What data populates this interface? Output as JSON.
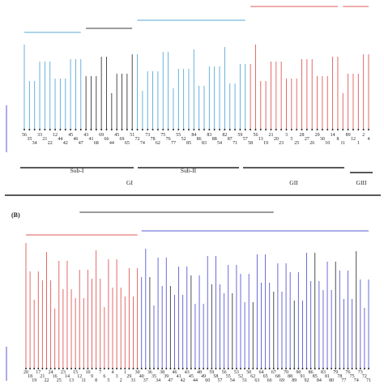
{
  "panel_a": {
    "colors": {
      "cluster_gi_sub1": "#5aa9d6",
      "cluster_gi_core": "#3a3a3a",
      "cluster_gi_sub2": "#5aa9d6",
      "cluster_gii": "#e05a5a",
      "cluster_giii": "#e05a5a"
    },
    "leaf_labels": [
      "56",
      "35",
      "34",
      "33",
      "21",
      "22",
      "12",
      "44",
      "42",
      "45",
      "46",
      "47",
      "43",
      "41",
      "68",
      "69",
      "66",
      "44",
      "45",
      "69",
      "65",
      "51",
      "72",
      "74",
      "73",
      "78",
      "62",
      "75",
      "76",
      "77",
      "55",
      "52",
      "85",
      "84",
      "86",
      "83",
      "83",
      "88",
      "54",
      "82",
      "87",
      "71",
      "59",
      "57",
      "58",
      "56",
      "13",
      "19",
      "21",
      "20",
      "23",
      "3",
      "5",
      "25",
      "28",
      "27",
      "26",
      "29",
      "30",
      "10",
      "14",
      "8",
      "11",
      "89",
      "12",
      "1",
      "2",
      "4"
    ],
    "groups": [
      {
        "id": "sub1",
        "label": "Sub-I"
      },
      {
        "id": "sub2",
        "label": "Sub-II"
      },
      {
        "id": "gi",
        "label": "GI"
      },
      {
        "id": "gii",
        "label": "GII"
      },
      {
        "id": "giii",
        "label": "GIII"
      }
    ]
  },
  "panel_b": {
    "label": "(B)",
    "colors": {
      "red": "#e05a5a",
      "blue": "#5a5ad6",
      "dark": "#3a3a3a"
    },
    "leaf_labels": [
      "20",
      "18",
      "19",
      "17",
      "21",
      "22",
      "24",
      "16",
      "25",
      "23",
      "14",
      "13",
      "15",
      "12",
      "11",
      "10",
      "9",
      "8",
      "7",
      "6",
      "5",
      "4",
      "3",
      "2",
      "1",
      "29",
      "31",
      "30",
      "40",
      "37",
      "36",
      "35",
      "34",
      "38",
      "39",
      "47",
      "46",
      "41",
      "42",
      "43",
      "45",
      "44",
      "48",
      "49",
      "60",
      "59",
      "58",
      "57",
      "56",
      "55",
      "54",
      "53",
      "52",
      "51",
      "50",
      "62",
      "63",
      "64",
      "65",
      "66",
      "67",
      "68",
      "69",
      "70",
      "88",
      "89",
      "90",
      "91",
      "92",
      "86",
      "85",
      "84",
      "83",
      "81",
      "80",
      "79",
      "78",
      "77",
      "76",
      "75",
      "74",
      "73",
      "72",
      "71"
    ]
  }
}
